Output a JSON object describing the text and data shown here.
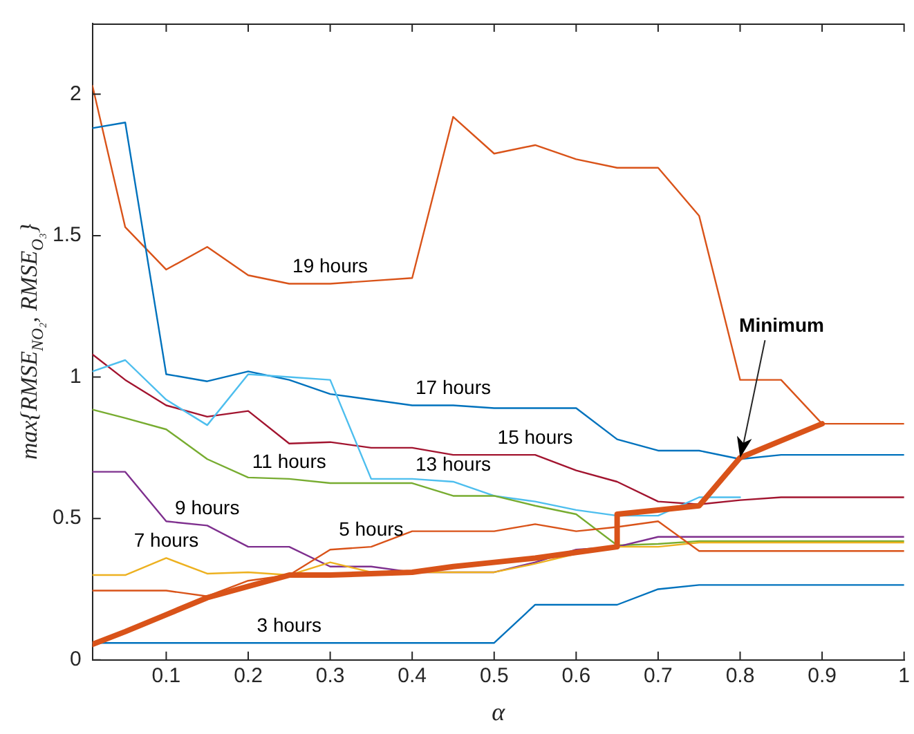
{
  "chart_data": {
    "type": "line",
    "xlabel": "α",
    "ylabel": "max{RMSE$_{NO₂}$, RMSE$_{O₃}$}",
    "x": [
      0.01,
      0.05,
      0.1,
      0.15,
      0.2,
      0.25,
      0.3,
      0.35,
      0.4,
      0.45,
      0.5,
      0.55,
      0.6,
      0.65,
      0.7,
      0.75,
      0.8,
      0.85,
      0.9,
      0.95,
      1
    ],
    "xlim": [
      0.01,
      1
    ],
    "xticks": [
      0.1,
      0.2,
      0.3,
      0.4,
      0.5,
      0.6,
      0.7,
      0.8,
      0.9,
      1
    ],
    "ylim": [
      0,
      2.25
    ],
    "yticks": [
      0,
      0.5,
      1,
      1.5,
      2
    ],
    "grid": false,
    "legend": false,
    "marker": "none",
    "line_style": "solid",
    "series": [
      {
        "color": "#0072bd",
        "values": [
          0.06,
          0.06,
          0.06,
          0.06,
          0.06,
          0.06,
          0.06,
          0.06,
          0.06,
          0.06,
          0.06,
          0.195,
          0.195,
          0.195,
          0.25,
          0.265,
          0.265,
          0.265,
          0.265,
          0.265,
          0.265
        ]
      },
      {
        "color": "#d95319",
        "values": [
          0.245,
          0.245,
          0.245,
          0.225,
          0.28,
          0.3,
          0.39,
          0.4,
          0.455,
          0.455,
          0.455,
          0.48,
          0.455,
          0.47,
          0.49,
          0.385,
          0.385,
          0.385,
          0.385,
          0.385,
          0.385
        ]
      },
      {
        "color": "#edb120",
        "values": [
          0.3,
          0.3,
          0.36,
          0.305,
          0.31,
          0.3,
          0.345,
          0.31,
          0.31,
          0.31,
          0.31,
          0.34,
          0.375,
          0.4,
          0.4,
          0.415,
          0.415,
          0.415,
          0.415,
          0.415,
          0.415
        ]
      },
      {
        "color": "#7e2f8e",
        "values": [
          0.665,
          0.665,
          0.49,
          0.475,
          0.4,
          0.4,
          0.33,
          0.33,
          0.31,
          0.31,
          0.31,
          0.345,
          0.39,
          0.4,
          0.435,
          0.435,
          0.435,
          0.435,
          0.435,
          0.435,
          0.435
        ]
      },
      {
        "color": "#77ac30",
        "values": [
          0.885,
          0.855,
          0.815,
          0.71,
          0.645,
          0.64,
          0.625,
          0.625,
          0.625,
          0.58,
          0.58,
          0.545,
          0.515,
          0.405,
          0.41,
          0.42,
          0.42,
          0.42,
          0.42,
          0.42,
          0.42
        ]
      },
      {
        "color": "#4dbeee",
        "values": [
          1.02,
          1.06,
          0.92,
          0.83,
          1.01,
          1.0,
          0.99,
          0.64,
          0.64,
          0.63,
          0.58,
          0.56,
          0.53,
          0.51,
          0.51,
          0.575,
          0.575,
          null,
          null,
          null,
          null
        ]
      },
      {
        "color": "#a2142f",
        "values": [
          1.08,
          0.99,
          0.9,
          0.86,
          0.88,
          0.765,
          0.77,
          0.75,
          0.75,
          0.725,
          0.725,
          0.725,
          0.67,
          0.63,
          0.56,
          0.55,
          0.565,
          0.575,
          0.575,
          0.575,
          0.575
        ]
      },
      {
        "color": "#0072bd",
        "values": [
          1.88,
          1.9,
          1.01,
          0.985,
          1.02,
          0.99,
          0.94,
          0.92,
          0.9,
          0.9,
          0.89,
          0.89,
          0.89,
          0.78,
          0.74,
          0.74,
          0.71,
          0.725,
          0.725,
          0.725,
          0.725
        ]
      },
      {
        "color": "#d95319",
        "values": [
          2.03,
          1.53,
          1.38,
          1.46,
          1.36,
          1.33,
          1.33,
          1.34,
          1.35,
          1.92,
          1.79,
          1.82,
          1.77,
          1.74,
          1.74,
          1.57,
          0.99,
          0.99,
          0.835,
          0.835,
          0.835
        ]
      },
      {
        "color": "#d95319",
        "x": [
          0.01,
          0.05,
          0.1,
          0.15,
          0.2,
          0.25,
          0.3,
          0.35,
          0.4,
          0.45,
          0.5,
          0.55,
          0.6,
          0.65,
          0.65,
          0.7,
          0.75,
          0.8,
          0.85,
          0.9
        ],
        "values": [
          0.055,
          0.1,
          0.16,
          0.22,
          0.26,
          0.3,
          0.3,
          0.305,
          0.31,
          0.33,
          0.345,
          0.36,
          0.38,
          0.4,
          0.515,
          0.53,
          0.545,
          0.715,
          0.775,
          0.835
        ]
      }
    ],
    "annotations": [
      {
        "text": "3 hours",
        "x": 0.25,
        "y": 0.06
      },
      {
        "text": "5 hours",
        "x": 0.35,
        "y": 0.4
      },
      {
        "text": "7 hours",
        "x": 0.1,
        "y": 0.36
      },
      {
        "text": "9 hours",
        "x": 0.15,
        "y": 0.475
      },
      {
        "text": "11 hours",
        "x": 0.25,
        "y": 0.64
      },
      {
        "text": "13 hours",
        "x": 0.45,
        "y": 0.63
      },
      {
        "text": "15 hours",
        "x": 0.55,
        "y": 0.725
      },
      {
        "text": "17 hours",
        "x": 0.45,
        "y": 0.9
      },
      {
        "text": "19 hours",
        "x": 0.3,
        "y": 1.33
      },
      {
        "text": "Minimum",
        "x": 0.8,
        "y": 0.715
      }
    ]
  }
}
